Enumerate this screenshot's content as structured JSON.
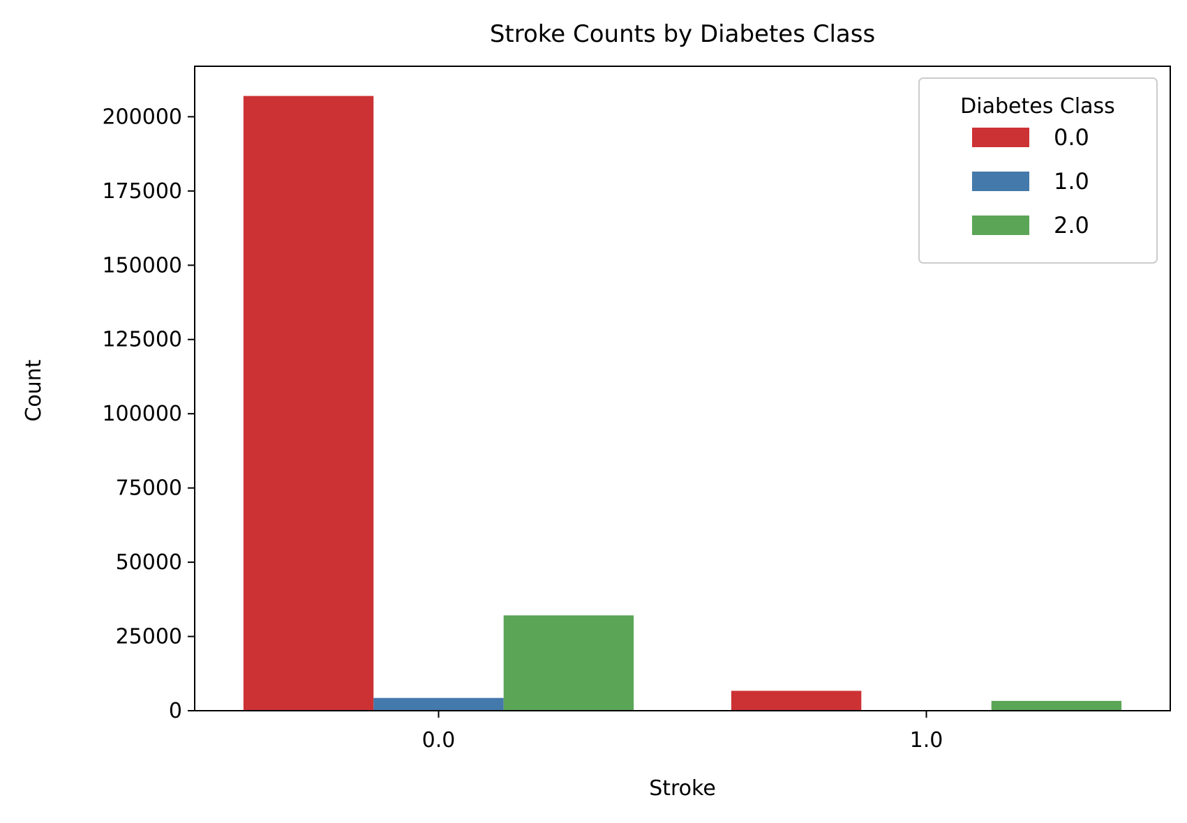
{
  "chart_data": {
    "type": "bar",
    "title": "Stroke Counts by Diabetes Class",
    "xlabel": "Stroke",
    "ylabel": "Count",
    "categories": [
      "0.0",
      "1.0"
    ],
    "ylim": [
      0,
      217000
    ],
    "yticks": [
      0,
      25000,
      50000,
      75000,
      100000,
      125000,
      150000,
      175000,
      200000
    ],
    "ytick_labels": [
      "0",
      "25000",
      "50000",
      "75000",
      "100000",
      "125000",
      "150000",
      "175000",
      "200000"
    ],
    "grid": false,
    "legend": {
      "title": "Diabetes Class",
      "placement": "top-right"
    },
    "series": [
      {
        "name": "0.0",
        "color": "#cc3234",
        "values": [
          207000,
          6700
        ]
      },
      {
        "name": "1.0",
        "color": "#4479ab",
        "values": [
          4300,
          100
        ]
      },
      {
        "name": "2.0",
        "color": "#5ba557",
        "values": [
          32100,
          3300
        ]
      }
    ]
  }
}
